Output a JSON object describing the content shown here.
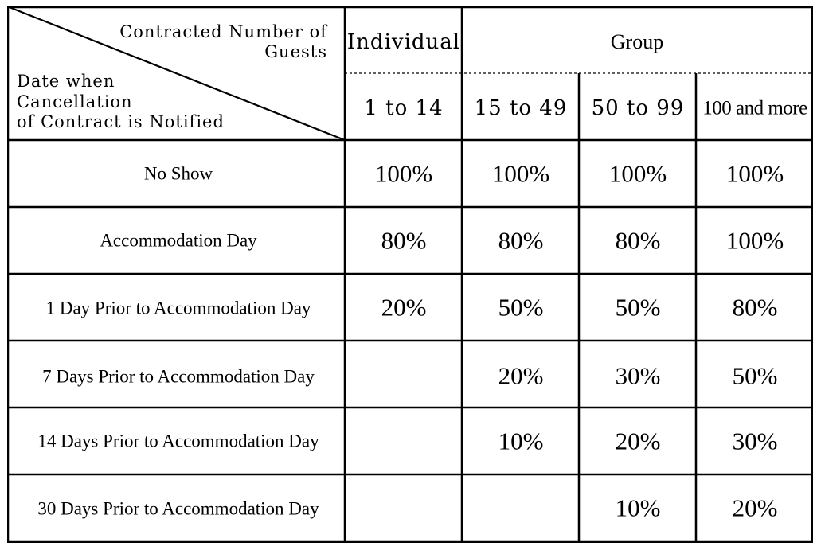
{
  "corner": {
    "top_right_line1": "Contracted Number of",
    "top_right_line2": "Guests",
    "bottom_left_line1": "Date when",
    "bottom_left_line2": "Cancellation",
    "bottom_left_line3": "of Contract is Notified"
  },
  "header": {
    "individual": "Individual",
    "group": "Group",
    "ranges": [
      "1 to 14",
      "15 to 49",
      "50 to 99",
      "100 and more"
    ]
  },
  "rows": [
    {
      "label": "No Show",
      "values": [
        "100%",
        "100%",
        "100%",
        "100%"
      ]
    },
    {
      "label": "Accommodation Day",
      "values": [
        "80%",
        "80%",
        "80%",
        "100%"
      ]
    },
    {
      "label": "1 Day Prior to Accommodation Day",
      "values": [
        "20%",
        "50%",
        "50%",
        "80%"
      ]
    },
    {
      "label": "7 Days Prior to Accommodation Day",
      "values": [
        "",
        "20%",
        "30%",
        "50%"
      ]
    },
    {
      "label": "14 Days Prior to Accommodation Day",
      "values": [
        "",
        "10%",
        "20%",
        "30%"
      ]
    },
    {
      "label": "30 Days Prior to Accommodation Day",
      "values": [
        "",
        "",
        "10%",
        "20%"
      ]
    }
  ]
}
